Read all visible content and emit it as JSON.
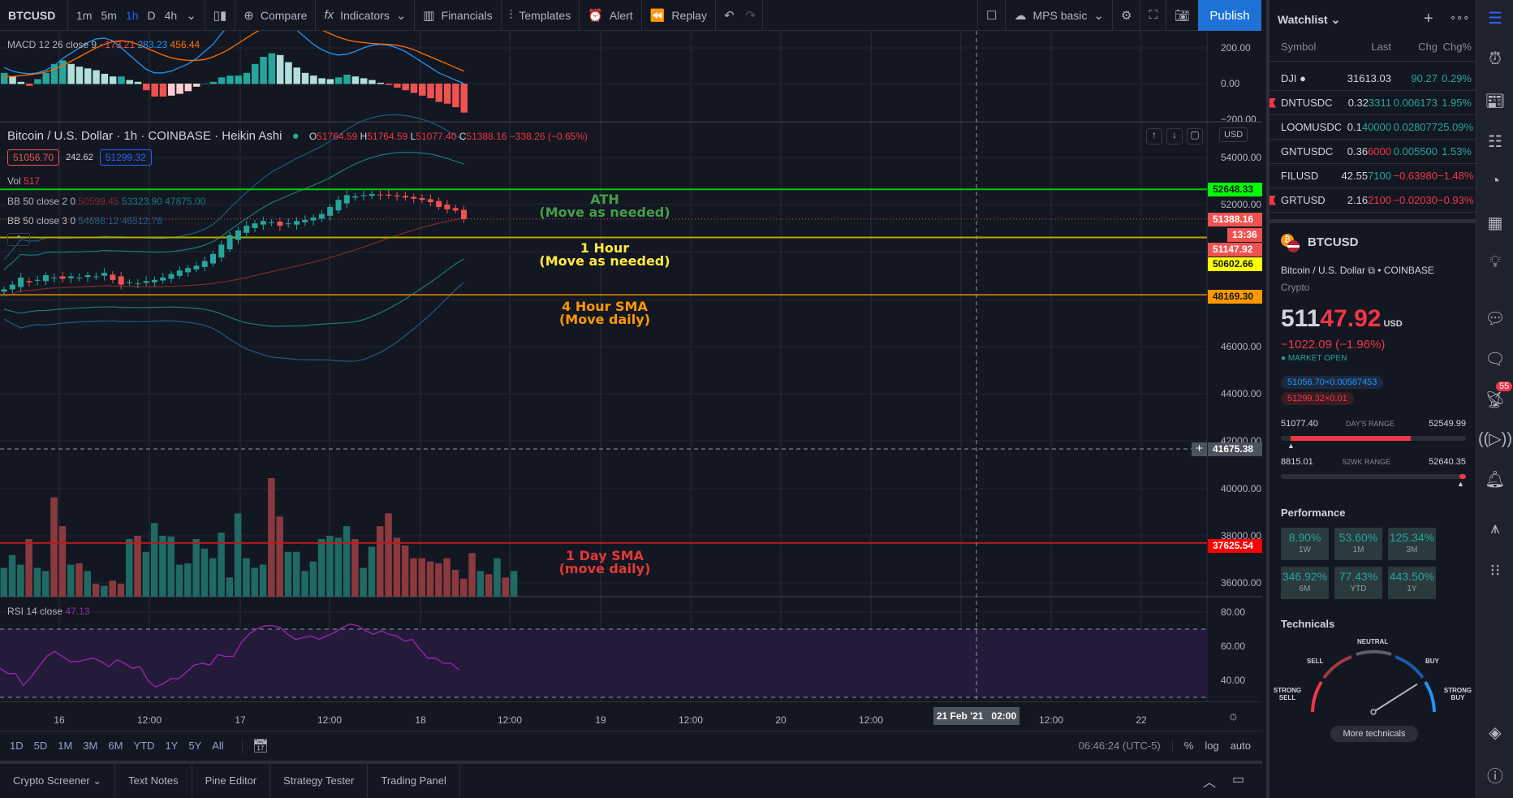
{
  "toolbar": {
    "symbol": "BTCUSD",
    "intervals": [
      "1m",
      "5m",
      "1h",
      "D",
      "4h"
    ],
    "active_interval": "1h",
    "compare": "Compare",
    "indicators": "Indicators",
    "financials": "Financials",
    "templates": "Templates",
    "alert": "Alert",
    "replay": "Replay",
    "layout": "MPS basic",
    "publish": "Publish"
  },
  "macd": {
    "label": "MACD 12 26 close 9",
    "v1": "−173.21",
    "v2": "283.23",
    "v3": "456.44",
    "axis": [
      "200.00",
      "0.00",
      "−200.00"
    ],
    "hist": [
      60,
      40,
      10,
      -10,
      25,
      60,
      110,
      130,
      110,
      95,
      85,
      75,
      55,
      40,
      40,
      20,
      10,
      -35,
      -70,
      -70,
      -65,
      -55,
      -40,
      -15,
      0,
      10,
      35,
      45,
      45,
      60,
      110,
      150,
      170,
      160,
      120,
      90,
      60,
      45,
      30,
      25,
      35,
      50,
      40,
      30,
      20,
      5,
      -5,
      -20,
      -35,
      -50,
      -65,
      -80,
      -100,
      -110,
      -130,
      -160
    ],
    "line": [
      90,
      70,
      60,
      55,
      60,
      75,
      100,
      140,
      170,
      200,
      230,
      250,
      255,
      240,
      200,
      160,
      120,
      80,
      60,
      60,
      70,
      90,
      110,
      140,
      180,
      220,
      280,
      330,
      370,
      400,
      420,
      420,
      400,
      380,
      350,
      300,
      260,
      220,
      190,
      170,
      160,
      165,
      180,
      200,
      215,
      220,
      215,
      200,
      180,
      150,
      120,
      90,
      60,
      40,
      20,
      0
    ],
    "signal": [
      40,
      40,
      45,
      50,
      55,
      65,
      80,
      100,
      125,
      150,
      175,
      200,
      220,
      235,
      240,
      235,
      220,
      200,
      180,
      160,
      145,
      135,
      130,
      130,
      135,
      150,
      170,
      195,
      225,
      255,
      285,
      310,
      330,
      345,
      350,
      345,
      335,
      320,
      300,
      280,
      260,
      245,
      235,
      230,
      225,
      222,
      220,
      215,
      205,
      190,
      170,
      150,
      130,
      110,
      90,
      70
    ]
  },
  "main": {
    "title": "Bitcoin / U.S. Dollar · 1h · COINBASE · Heikin Ashi",
    "o": "51764.59",
    "h": "51764.59",
    "l": "51077.40",
    "c": "51388.16",
    "chg": "−338.26 (−0.65%)",
    "bid": "51056.70",
    "spread": "242.62",
    "ask": "51299.32",
    "vol_label": "Vol",
    "vol_value": "517",
    "bb1": {
      "label": "BB 50 close 2 0",
      "a": "50599.45",
      "b": "53323.90",
      "c": "47875.00"
    },
    "bb2": {
      "label": "BB 50 close 3 0",
      "a": "54686.12",
      "b": "46512.78"
    },
    "currency": "USD",
    "axis": [
      "54000.00",
      "52000.00",
      "46000.00",
      "44000.00",
      "42000.00",
      "40000.00",
      "38000.00",
      "36000.00"
    ],
    "lines": [
      {
        "price": 52648.33,
        "label": "52648.33",
        "color": "#00c800",
        "bg": "#00ff00",
        "fg": "#131722",
        "ann1": "ATH",
        "ann2": "(Move as needed)",
        "ann_color": "#43a047"
      },
      {
        "price": 50602.66,
        "label": "50602.66",
        "color": "#b5a800",
        "bg": "#ffff00",
        "fg": "#131722",
        "ann1": "1 Hour",
        "ann2": "(Move as needed)",
        "ann_color": "#ffeb3b"
      },
      {
        "price": 48169.3,
        "label": "48169.30",
        "color": "#b5700a",
        "bg": "#ff9800",
        "fg": "#131722",
        "ann1": "4 Hour SMA",
        "ann2": "(Move daily)",
        "ann_color": "#ff9800"
      },
      {
        "price": 37625.54,
        "label": "37625.54",
        "color": "#b71c1c",
        "bg": "#ff0000",
        "fg": "#ffffff",
        "ann1": "1 Day SMA",
        "ann2": "(move daily)",
        "ann_color": "#e53935"
      }
    ],
    "last_price": "51388.16",
    "countdown": "13:36",
    "current": "51147.92",
    "crosshair_price": "41675.38",
    "closes": [
      48400,
      48600,
      48900,
      48700,
      48800,
      49000,
      48900,
      48850,
      48950,
      48900,
      49000,
      48950,
      49100,
      48800,
      48600,
      48700,
      48650,
      48750,
      48800,
      48900,
      49050,
      49200,
      49300,
      49400,
      49600,
      49900,
      50300,
      50700,
      50900,
      51100,
      51200,
      51300,
      51250,
      51100,
      51200,
      51300,
      51350,
      51450,
      51600,
      51900,
      52200,
      52400,
      52350,
      52400,
      52450,
      52400,
      52380,
      52350,
      52300,
      52250,
      52200,
      52100,
      51900,
      51800,
      51750,
      51388
    ],
    "volume": [
      45,
      65,
      50,
      90,
      45,
      40,
      155,
      110,
      50,
      52,
      40,
      20,
      17,
      25,
      20,
      90,
      95,
      70,
      115,
      95,
      94,
      50,
      52,
      90,
      75,
      60,
      100,
      30,
      130,
      60,
      45,
      50,
      185,
      125,
      70,
      70,
      40,
      55,
      90,
      95,
      92,
      110,
      90,
      45,
      78,
      110,
      130,
      92,
      80,
      60,
      60,
      55,
      52,
      60,
      42,
      28,
      68,
      40,
      35,
      60,
      30,
      40
    ]
  },
  "rsi": {
    "label": "RSI 14 close",
    "value": "47.13",
    "axis": [
      "80.00",
      "60.00",
      "40.00"
    ],
    "values": [
      47,
      44,
      44,
      37,
      42,
      48,
      54,
      57,
      54,
      51,
      51,
      52,
      53,
      51,
      48,
      52,
      50,
      47,
      48,
      40,
      36,
      38,
      41,
      41,
      45,
      49,
      50,
      49,
      55,
      54,
      54,
      62,
      67,
      70,
      72,
      72,
      71,
      67,
      64,
      65,
      66,
      64,
      66,
      68,
      71,
      73,
      72,
      69,
      67,
      69,
      67,
      66,
      63,
      64,
      58,
      53,
      53,
      50,
      50,
      46
    ]
  },
  "time_axis": {
    "labels": [
      "16",
      "12:00",
      "17",
      "12:00",
      "18",
      "12:00",
      "19",
      "12:00",
      "20",
      "12:00",
      "12:00",
      "22"
    ],
    "crosshair": "21 Feb '21   02:00"
  },
  "bottom_bar": {
    "ranges": [
      "1D",
      "5D",
      "1M",
      "3M",
      "6M",
      "YTD",
      "1Y",
      "5Y",
      "All"
    ],
    "clock": "06:46:24 (UTC-5)",
    "pct": "%",
    "log": "log",
    "auto": "auto"
  },
  "bottom_tabs": [
    "Crypto Screener",
    "Text Notes",
    "Pine Editor",
    "Strategy Tester",
    "Trading Panel"
  ],
  "watchlist": {
    "title": "Watchlist",
    "cols": [
      "Symbol",
      "Last",
      "Chg",
      "Chg%"
    ],
    "rows": [
      {
        "sym": "DJI ●",
        "lb": "31613.03",
        "lt": "",
        "lc": "g",
        "chg": "90.27",
        "cc": "g",
        "pct": "0.29%",
        "pc": "g",
        "flag": false
      },
      {
        "sym": "DNTUSDC",
        "lb": "0.32",
        "lt": "3311",
        "lc": "g",
        "chg": "0.006173",
        "cc": "g",
        "pct": "1.95%",
        "pc": "g",
        "flag": true
      },
      {
        "sym": "LOOMUSDC",
        "lb": "0.1",
        "lt": "40000",
        "lc": "g",
        "chg": "0.028077",
        "cc": "g",
        "pct": "25.09%",
        "pc": "g",
        "flag": false
      },
      {
        "sym": "GNTUSDC",
        "lb": "0.36",
        "lt": "6000",
        "lc": "r",
        "chg": "0.005500",
        "cc": "g",
        "pct": "1.53%",
        "pc": "g",
        "flag": false
      },
      {
        "sym": "FILUSD",
        "lb": "42.55",
        "lt": "7100",
        "lc": "g",
        "chg": "−0.63980",
        "cc": "r",
        "pct": "−1.48%",
        "pc": "r",
        "flag": false
      },
      {
        "sym": "GRTUSD",
        "lb": "2.16",
        "lt": "2100",
        "lc": "r",
        "chg": "−0.02030",
        "cc": "r",
        "pct": "−0.93%",
        "pc": "r",
        "flag": true
      }
    ]
  },
  "detail": {
    "symbol": "BTCUSD",
    "name": "Bitcoin / U.S. Dollar",
    "exchange": "COINBASE",
    "type": "Crypto",
    "price_a": "511",
    "price_b": "47.92",
    "currency": "USD",
    "change": "−1022.09 (−1.96%)",
    "status": "MARKET OPEN",
    "bid": "51056.70×0.00587453",
    "ask": "51299.32×0.01",
    "day_low": "51077.40",
    "day_label": "DAY'S RANGE",
    "day_high": "52549.99",
    "day_fill": 0.7,
    "wk_low": "8815.01",
    "wk_label": "52WK RANGE",
    "wk_high": "52640.35",
    "wk_pos": 0.98,
    "perf_title": "Performance",
    "perf": [
      {
        "v": "8.90%",
        "k": "1W"
      },
      {
        "v": "53.60%",
        "k": "1M"
      },
      {
        "v": "125.34%",
        "k": "3M"
      },
      {
        "v": "346.92%",
        "k": "6M"
      },
      {
        "v": "77.43%",
        "k": "YTD"
      },
      {
        "v": "443.50%",
        "k": "1Y"
      }
    ],
    "tech_title": "Technicals",
    "gauge": {
      "strong_sell": "STRONG SELL",
      "sell": "SELL",
      "neutral": "NEUTRAL",
      "buy": "BUY",
      "strong_buy": "STRONG BUY",
      "needle": 0.82
    },
    "more": "More technicals"
  },
  "notifications": "55",
  "colors": {
    "up": "#26a69a",
    "down": "#ef5350",
    "accent": "#2962ff",
    "publish": "#1e72d6"
  }
}
